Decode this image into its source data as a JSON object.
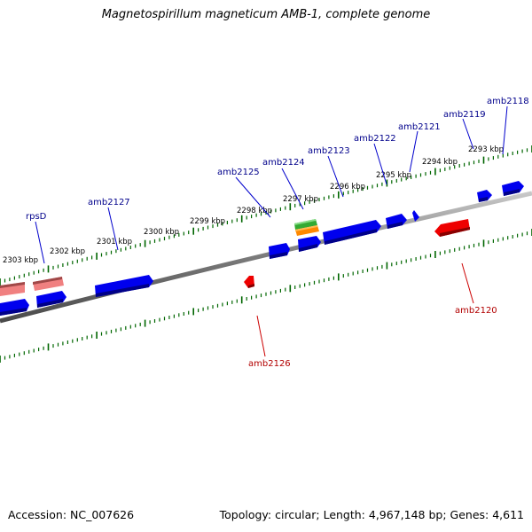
{
  "title": "Magnetospirillum magneticum AMB-1, complete genome",
  "footer": {
    "accession": "Accession: NC_007626",
    "stats": "Topology: circular; Length: 4,967,148 bp; Genes: 4,611"
  },
  "scale_labels": [
    "2303 kbp",
    "2302 kbp",
    "2301 kbp",
    "2300 kbp",
    "2299 kbp",
    "2298 kbp",
    "2297 kbp",
    "2296 kbp",
    "2295 kbp",
    "2294 kbp",
    "2293 kbp"
  ],
  "gene_labels": [
    {
      "name": "rpsD",
      "color": "#00008b"
    },
    {
      "name": "amb2127",
      "color": "#00008b"
    },
    {
      "name": "amb2125",
      "color": "#00008b"
    },
    {
      "name": "amb2124",
      "color": "#00008b"
    },
    {
      "name": "amb2123",
      "color": "#00008b"
    },
    {
      "name": "amb2122",
      "color": "#00008b"
    },
    {
      "name": "amb2121",
      "color": "#00008b"
    },
    {
      "name": "amb2119",
      "color": "#00008b"
    },
    {
      "name": "amb2118",
      "color": "#00008b"
    },
    {
      "name": "amb2126",
      "color": "#b20000"
    },
    {
      "name": "amb2120",
      "color": "#b20000"
    }
  ],
  "colors": {
    "forward_gene": "#0000ee",
    "reverse_gene": "#ee0000",
    "rna_gene": "#f08080",
    "green_feature": "#33aa33",
    "orange_feature": "#ff8800",
    "backbone": "#808080",
    "tick": "#006600"
  }
}
